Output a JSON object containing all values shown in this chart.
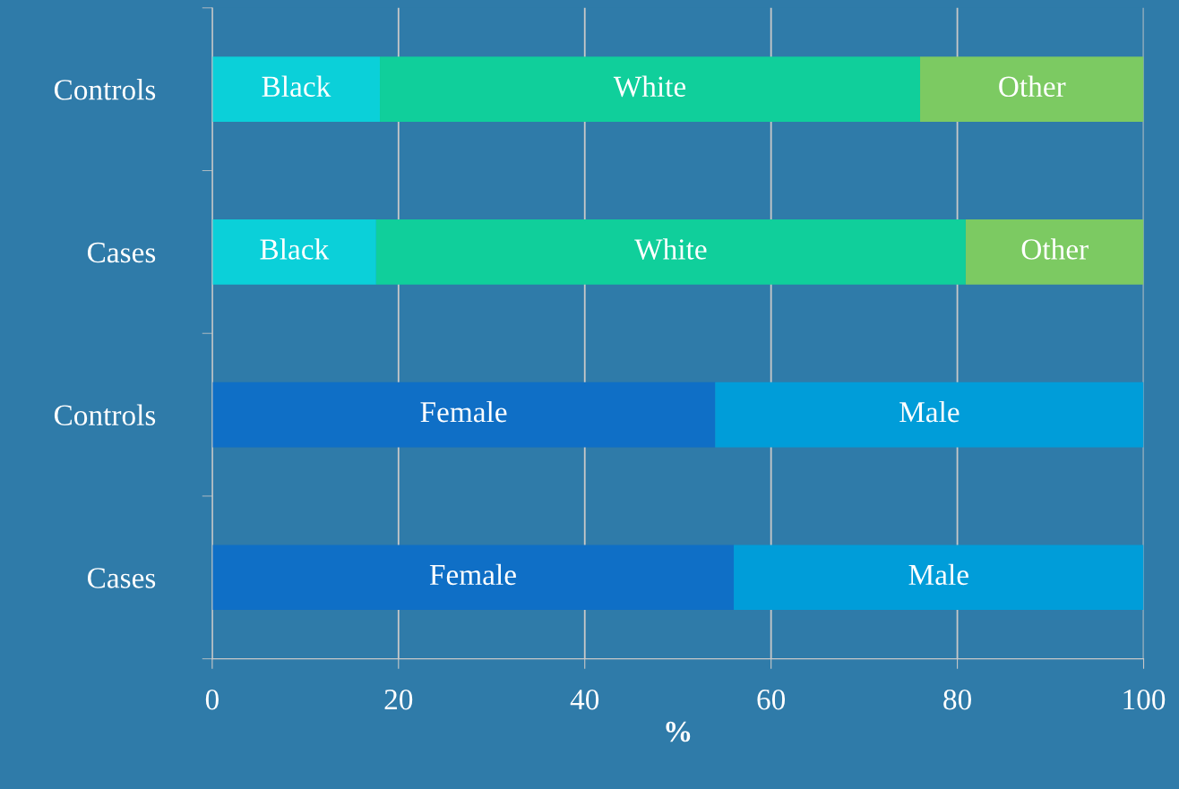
{
  "chart_data": {
    "type": "bar",
    "orientation": "horizontal",
    "stacked": true,
    "xlabel": "%",
    "categories": [
      "Controls",
      "Cases",
      "Controls",
      "Cases"
    ],
    "series": [
      {
        "name": "Black",
        "color": "#0bd0d9",
        "values": [
          18,
          17.6,
          null,
          null
        ]
      },
      {
        "name": "White",
        "color": "#10cf9b",
        "values": [
          58,
          63.3,
          null,
          null
        ]
      },
      {
        "name": "Other",
        "color": "#7cca62",
        "values": [
          24,
          19.1,
          null,
          null
        ]
      },
      {
        "name": "Female",
        "color": "#0f6fc6",
        "values": [
          null,
          null,
          54,
          56
        ]
      },
      {
        "name": "Male",
        "color": "#009dd9",
        "values": [
          null,
          null,
          46,
          44
        ]
      }
    ],
    "xlim": [
      0,
      100
    ],
    "xticks": [
      0,
      20,
      40,
      60,
      80,
      100
    ],
    "grid": "x",
    "legend": false
  }
}
